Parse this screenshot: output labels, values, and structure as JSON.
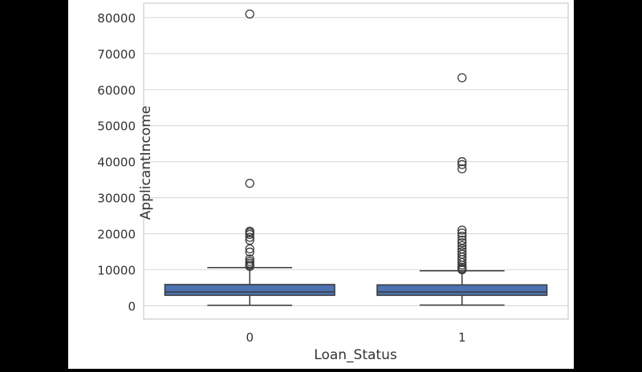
{
  "chart_data": {
    "type": "box",
    "title": "",
    "xlabel": "Loan_Status",
    "ylabel": "ApplicantIncome",
    "ylim": [
      -3700,
      84000
    ],
    "yticks": [
      0,
      10000,
      20000,
      30000,
      40000,
      50000,
      60000,
      70000,
      80000
    ],
    "grid": true,
    "categories": [
      "0",
      "1"
    ],
    "boxes": [
      {
        "category": "0",
        "whisker_low": 150,
        "q1": 2900,
        "median": 3800,
        "q3": 5900,
        "whisker_high": 10600,
        "outliers": [
          81000,
          34000,
          20700,
          20300,
          19800,
          19000,
          18200,
          15800,
          14900,
          13000,
          12300,
          11800,
          11300,
          10900
        ]
      },
      {
        "category": "1",
        "whisker_low": 200,
        "q1": 2900,
        "median": 3800,
        "q3": 5800,
        "whisker_high": 9700,
        "outliers": [
          63300,
          40000,
          39200,
          38000,
          21000,
          20200,
          19300,
          18200,
          17500,
          16700,
          15800,
          15000,
          14300,
          13500,
          12800,
          12000,
          11300,
          10700,
          10300,
          10000
        ]
      }
    ],
    "colors": {
      "box_fill": "#4c72b0",
      "line": "#3a3a3a",
      "grid": "#dddddd",
      "frame": "#cccccc"
    }
  }
}
